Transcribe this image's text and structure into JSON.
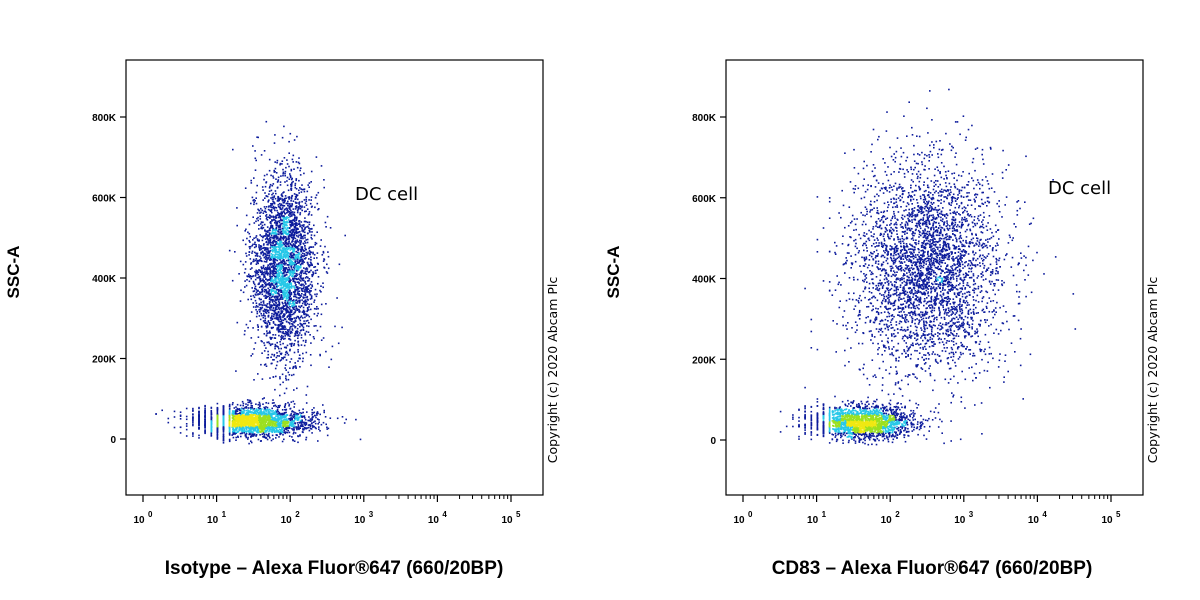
{
  "colors": {
    "density_low": "#0d1c9c",
    "density_mid": "#27c8e8",
    "density_high": "#9ce020",
    "density_peak": "#f0e812",
    "axis": "#000000"
  },
  "chart_data": [
    {
      "type": "scatter",
      "title": "",
      "xlabel": "Isotype – Alexa Fluor®647 (660/20BP)",
      "ylabel": "SSC-A",
      "x_scale": "log",
      "xlim": [
        1,
        100000
      ],
      "ylim": [
        -120000,
        930000
      ],
      "x_ticks": [
        1,
        10,
        100,
        1000,
        10000,
        100000
      ],
      "y_ticks": [
        0,
        200000,
        400000,
        600000,
        800000
      ],
      "y_tick_labels": [
        "0",
        "200K",
        "400K",
        "600K",
        "800K"
      ],
      "gate_label": "DC cell",
      "copyright": "Copyright (c) 2020 Abcam Plc",
      "grid": false,
      "populations": [
        {
          "cells": 3200,
          "x_center": 80,
          "x_spread_decades": 0.22,
          "y_center": 430000,
          "y_spread": 110000
        },
        {
          "cells": 2400,
          "x_center": 30,
          "x_spread_decades": 0.38,
          "y_center": 45000,
          "y_spread": 18000
        }
      ]
    },
    {
      "type": "scatter",
      "title": "",
      "xlabel": "CD83 – Alexa Fluor®647 (660/20BP)",
      "ylabel": "SSC-A",
      "x_scale": "log",
      "xlim": [
        1,
        100000
      ],
      "ylim": [
        -120000,
        930000
      ],
      "x_ticks": [
        1,
        10,
        100,
        1000,
        10000,
        100000
      ],
      "y_ticks": [
        0,
        200000,
        400000,
        600000,
        800000
      ],
      "y_tick_labels": [
        "0",
        "200K",
        "400K",
        "600K",
        "800K"
      ],
      "gate_label": "DC cell",
      "copyright": "Copyright (c) 2020 Abcam Plc",
      "grid": false,
      "populations": [
        {
          "cells": 3600,
          "x_center": 300,
          "x_spread_decades": 0.5,
          "y_center": 430000,
          "y_spread": 130000
        },
        {
          "cells": 2000,
          "x_center": 40,
          "x_spread_decades": 0.35,
          "y_center": 45000,
          "y_spread": 20000
        }
      ]
    }
  ]
}
